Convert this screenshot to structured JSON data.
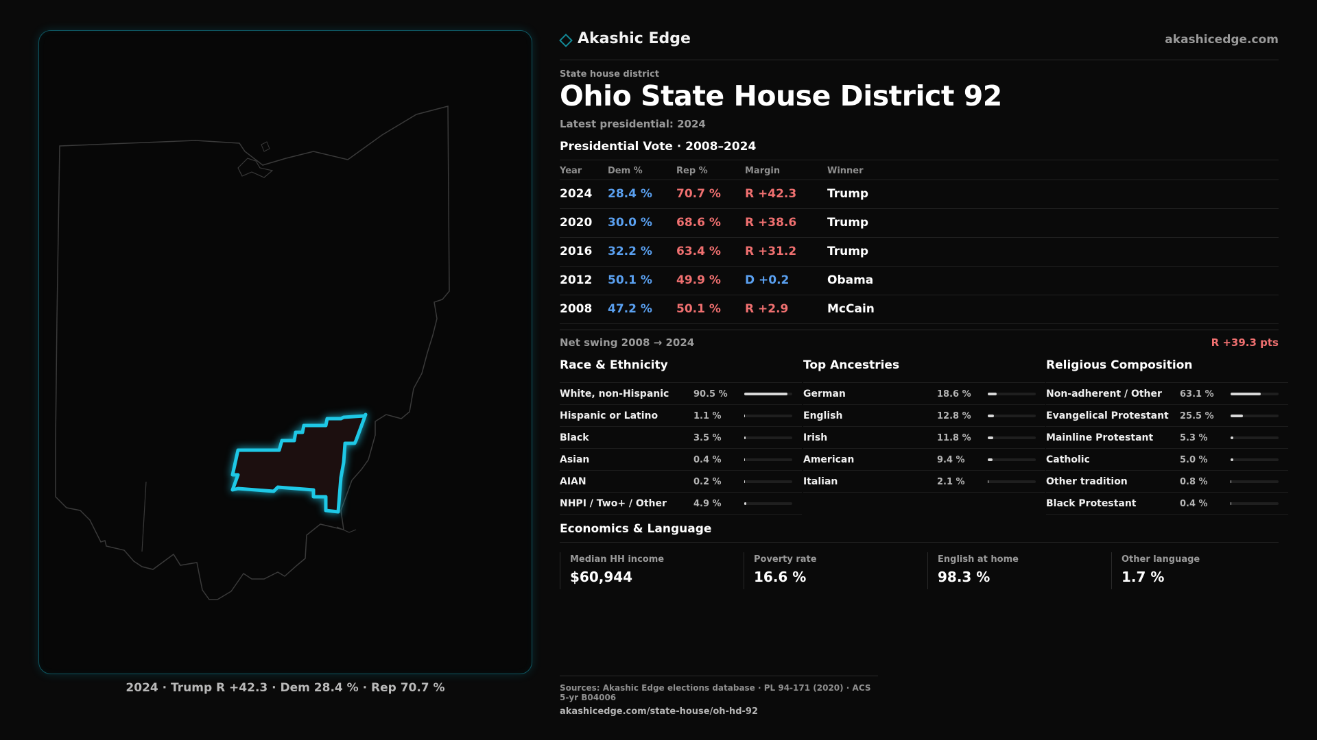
{
  "brand": {
    "name": "Akashic Edge",
    "url": "akashicedge.com",
    "icon": "diamond-icon",
    "accent": "#138a98"
  },
  "header": {
    "kicker": "State house district",
    "title": "Ohio State House District 92",
    "subtitle": "Latest presidential: 2024"
  },
  "map": {
    "caption": "2024 · Trump R +42.3 · Dem 28.4 % · Rep 70.7 %",
    "highlight_color": "#1ec8e6",
    "district_fill": "#1c0f0f",
    "outline_color": "#3a3a3a"
  },
  "presidential": {
    "title": "Presidential Vote · 2008–2024",
    "columns": [
      "Year",
      "Dem %",
      "Rep %",
      "Margin",
      "Winner"
    ],
    "rows": [
      {
        "year": "2024",
        "dem": "28.4 %",
        "rep": "70.7 %",
        "margin": "R +42.3",
        "winner": "Trump"
      },
      {
        "year": "2020",
        "dem": "30.0 %",
        "rep": "68.6 %",
        "margin": "R +38.6",
        "winner": "Trump"
      },
      {
        "year": "2016",
        "dem": "32.2 %",
        "rep": "63.4 %",
        "margin": "R +31.2",
        "winner": "Trump"
      },
      {
        "year": "2012",
        "dem": "50.1 %",
        "rep": "49.9 %",
        "margin": "D +0.2",
        "winner": "Obama"
      },
      {
        "year": "2008",
        "dem": "47.2 %",
        "rep": "50.1 %",
        "margin": "R +2.9",
        "winner": "McCain"
      }
    ],
    "swing_label": "Net swing 2008 → 2024",
    "swing_value": "R +39.3 pts",
    "colors": {
      "dem": "#5aa0f0",
      "rep": "#f07070"
    }
  },
  "race": {
    "title": "Race & Ethnicity",
    "rows": [
      {
        "label": "White, non-Hispanic",
        "pct": "90.5 %",
        "value": 90.5
      },
      {
        "label": "Hispanic or Latino",
        "pct": "1.1 %",
        "value": 1.1
      },
      {
        "label": "Black",
        "pct": "3.5 %",
        "value": 3.5
      },
      {
        "label": "Asian",
        "pct": "0.4 %",
        "value": 0.4
      },
      {
        "label": "AIAN",
        "pct": "0.2 %",
        "value": 0.2
      },
      {
        "label": "NHPI / Two+ / Other",
        "pct": "4.9 %",
        "value": 4.9
      }
    ]
  },
  "ancestry": {
    "title": "Top Ancestries",
    "rows": [
      {
        "label": "German",
        "pct": "18.6 %",
        "value": 18.6
      },
      {
        "label": "English",
        "pct": "12.8 %",
        "value": 12.8
      },
      {
        "label": "Irish",
        "pct": "11.8 %",
        "value": 11.8
      },
      {
        "label": "American",
        "pct": "9.4 %",
        "value": 9.4
      },
      {
        "label": "Italian",
        "pct": "2.1 %",
        "value": 2.1
      }
    ]
  },
  "religion": {
    "title": "Religious Composition",
    "rows": [
      {
        "label": "Non-adherent / Other",
        "pct": "63.1 %",
        "value": 63.1
      },
      {
        "label": "Evangelical Protestant",
        "pct": "25.5 %",
        "value": 25.5
      },
      {
        "label": "Mainline Protestant",
        "pct": "5.3 %",
        "value": 5.3
      },
      {
        "label": "Catholic",
        "pct": "5.0 %",
        "value": 5.0
      },
      {
        "label": "Other tradition",
        "pct": "0.8 %",
        "value": 0.8
      },
      {
        "label": "Black Protestant",
        "pct": "0.4 %",
        "value": 0.4
      }
    ]
  },
  "economics": {
    "title": "Economics & Language",
    "cards": [
      {
        "label": "Median HH income",
        "value": "$60,944"
      },
      {
        "label": "Poverty rate",
        "value": "16.6 %"
      },
      {
        "label": "English at home",
        "value": "98.3 %"
      },
      {
        "label": "Other language",
        "value": "1.7 %"
      }
    ]
  },
  "sources": {
    "line1": "Sources: Akashic Edge elections database · PL 94-171 (2020) · ACS 5-yr B04006",
    "line2": "akashicedge.com/state-house/oh-hd-92"
  }
}
